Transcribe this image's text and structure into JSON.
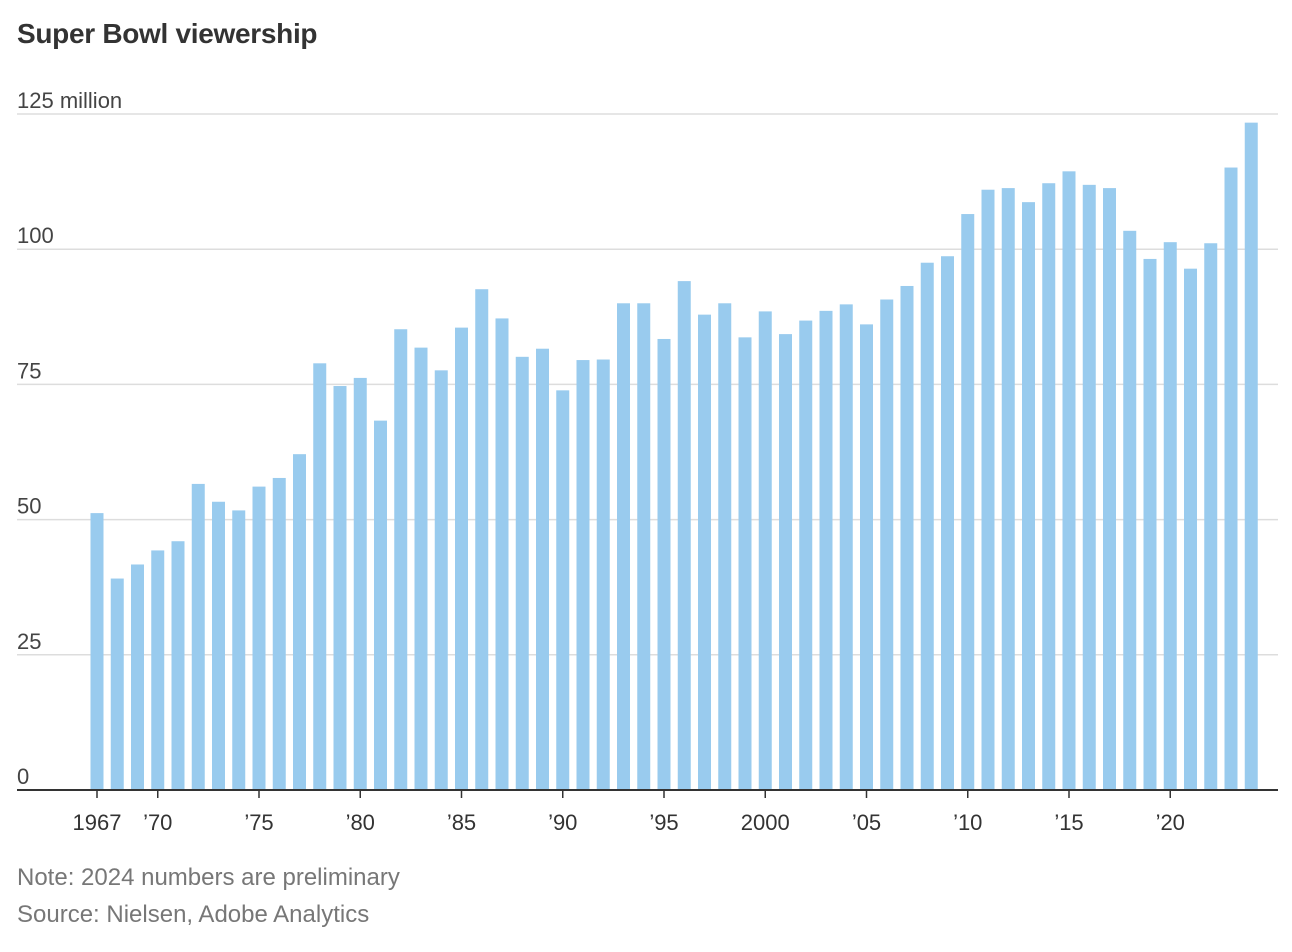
{
  "chart_data": {
    "type": "bar",
    "title": "Super Bowl viewership",
    "ylabel": "",
    "xlabel": "",
    "ylim": [
      0,
      125
    ],
    "y_ticks": [
      {
        "value": 0,
        "label": "0"
      },
      {
        "value": 25,
        "label": "25"
      },
      {
        "value": 50,
        "label": "50"
      },
      {
        "value": 75,
        "label": "75"
      },
      {
        "value": 100,
        "label": "100"
      },
      {
        "value": 125,
        "label": "125 million"
      }
    ],
    "x_ticks": [
      {
        "year": 1967,
        "label": "1967"
      },
      {
        "year": 1970,
        "label": "’70"
      },
      {
        "year": 1975,
        "label": "’75"
      },
      {
        "year": 1980,
        "label": "’80"
      },
      {
        "year": 1985,
        "label": "’85"
      },
      {
        "year": 1990,
        "label": "’90"
      },
      {
        "year": 1995,
        "label": "’95"
      },
      {
        "year": 2000,
        "label": "2000"
      },
      {
        "year": 2005,
        "label": "’05"
      },
      {
        "year": 2010,
        "label": "’10"
      },
      {
        "year": 2015,
        "label": "’15"
      },
      {
        "year": 2020,
        "label": "’20"
      }
    ],
    "bar_color": "#99cbee",
    "categories": [
      1967,
      1968,
      1969,
      1970,
      1971,
      1972,
      1973,
      1974,
      1975,
      1976,
      1977,
      1978,
      1979,
      1980,
      1981,
      1982,
      1983,
      1984,
      1985,
      1986,
      1987,
      1988,
      1989,
      1990,
      1991,
      1992,
      1993,
      1994,
      1995,
      1996,
      1997,
      1998,
      1999,
      2000,
      2001,
      2002,
      2003,
      2004,
      2005,
      2006,
      2007,
      2008,
      2009,
      2010,
      2011,
      2012,
      2013,
      2014,
      2015,
      2016,
      2017,
      2018,
      2019,
      2020,
      2021,
      2022,
      2023,
      2024
    ],
    "values": [
      51.2,
      39.1,
      41.7,
      44.3,
      46.0,
      56.6,
      53.3,
      51.7,
      56.1,
      57.7,
      62.1,
      78.9,
      74.7,
      76.2,
      68.3,
      85.2,
      81.8,
      77.6,
      85.5,
      92.6,
      87.2,
      80.1,
      81.6,
      73.9,
      79.5,
      79.6,
      90.0,
      90.0,
      83.4,
      94.1,
      87.9,
      90.0,
      83.7,
      88.5,
      84.3,
      86.8,
      88.6,
      89.8,
      86.1,
      90.7,
      93.2,
      97.5,
      98.7,
      106.5,
      111.0,
      111.3,
      108.7,
      112.2,
      114.4,
      111.9,
      111.3,
      103.4,
      98.2,
      101.3,
      96.4,
      101.1,
      115.1,
      123.4
    ]
  },
  "footer": {
    "note": "Note: 2024 numbers are preliminary",
    "source": "Source: Nielsen, Adobe Analytics"
  }
}
